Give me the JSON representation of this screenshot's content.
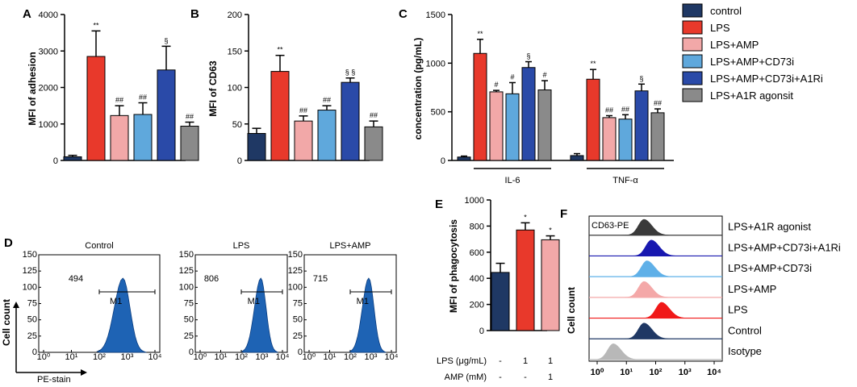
{
  "colors": {
    "control": "#1f3864",
    "LPS": "#e8392b",
    "LPS+AMP": "#f2a8a8",
    "LPS+AMP+CD73i": "#5fa8dc",
    "LPS+AMP+CD73i+A1Ri": "#2a4aa8",
    "LPS+A1R agonsit": "#8a8a8a",
    "flow_fill": "#1e63b4"
  },
  "panel_labels": {
    "A": "A",
    "B": "B",
    "C": "C",
    "D": "D",
    "E": "E",
    "F": "F"
  },
  "legend": [
    "control",
    "LPS",
    "LPS+AMP",
    "LPS+AMP+CD73i",
    "LPS+AMP+CD73i+A1Ri",
    "LPS+A1R agonsit"
  ],
  "chart_data": [
    {
      "id": "A",
      "type": "bar",
      "ylabel": "MFI of adhesion",
      "ylim": [
        0,
        4000
      ],
      "yticks": [
        "0",
        "1000",
        "2000",
        "3000",
        "4000"
      ],
      "categories": [
        "control",
        "LPS",
        "LPS+AMP",
        "LPS+AMP+CD73i",
        "LPS+AMP+CD73i+A1Ri",
        "LPS+A1R agonsit"
      ],
      "values": [
        100,
        2850,
        1230,
        1260,
        2480,
        940
      ],
      "errors": [
        40,
        700,
        270,
        320,
        650,
        110
      ],
      "annotations": [
        "",
        "**",
        "##",
        "##",
        "§",
        "##"
      ]
    },
    {
      "id": "B",
      "type": "bar",
      "ylabel": "MFI of CD63",
      "ylim": [
        0,
        200
      ],
      "yticks": [
        "0",
        "50",
        "100",
        "150",
        "200"
      ],
      "categories": [
        "control",
        "LPS",
        "LPS+AMP",
        "LPS+AMP+CD73i",
        "LPS+AMP+CD73i+A1Ri",
        "LPS+A1R agonsit"
      ],
      "values": [
        37,
        122,
        54,
        69,
        107,
        46
      ],
      "errors": [
        7,
        22,
        7,
        6,
        6,
        8
      ],
      "annotations": [
        "",
        "**",
        "##",
        "##",
        "§ §",
        "##"
      ]
    },
    {
      "id": "C",
      "type": "bar",
      "ylabel": "concentration (pg/mL)",
      "ylim": [
        0,
        1500
      ],
      "yticks": [
        "0",
        "500",
        "1000",
        "1500"
      ],
      "groups": [
        "IL-6",
        "TNF-α"
      ],
      "series": [
        {
          "name": "control",
          "values": [
            35,
            50
          ],
          "errors": [
            10,
            20
          ],
          "annotations": [
            "",
            ""
          ]
        },
        {
          "name": "LPS",
          "values": [
            1100,
            835
          ],
          "errors": [
            145,
            100
          ],
          "annotations": [
            "**",
            "**"
          ]
        },
        {
          "name": "LPS+AMP",
          "values": [
            705,
            440
          ],
          "errors": [
            15,
            20
          ],
          "annotations": [
            "#",
            "##"
          ]
        },
        {
          "name": "LPS+AMP+CD73i",
          "values": [
            685,
            425
          ],
          "errors": [
            115,
            45
          ],
          "annotations": [
            "#",
            "##"
          ]
        },
        {
          "name": "LPS+AMP+CD73i+A1Ri",
          "values": [
            955,
            715
          ],
          "errors": [
            60,
            70
          ],
          "annotations": [
            "§",
            "§"
          ]
        },
        {
          "name": "LPS+A1R agonsit",
          "values": [
            725,
            490
          ],
          "errors": [
            95,
            40
          ],
          "annotations": [
            "#",
            "##"
          ]
        }
      ]
    },
    {
      "id": "E",
      "type": "bar",
      "ylabel": "MFI of phagocytosis",
      "ylim": [
        0,
        1000
      ],
      "yticks": [
        "0",
        "200",
        "400",
        "600",
        "800",
        "1000"
      ],
      "categories": [
        "control",
        "LPS",
        "LPS+AMP"
      ],
      "values": [
        445,
        770,
        695
      ],
      "errors": [
        70,
        55,
        30
      ],
      "annotations": [
        "",
        "*",
        "*"
      ],
      "treatment_rows": [
        {
          "label": "LPS (μg/mL)",
          "values": [
            "-",
            "1",
            "1"
          ]
        },
        {
          "label": "AMP (mM)",
          "values": [
            "-",
            "-",
            "1"
          ]
        }
      ]
    },
    {
      "id": "D",
      "type": "histogram",
      "ylabel": "Cell count",
      "xlabel": "PE-stain",
      "yticks": [
        "0",
        "25",
        "50",
        "75",
        "100",
        "125",
        "150"
      ],
      "xticks": [
        "10⁰",
        "10¹",
        "10²",
        "10³",
        "10⁴"
      ],
      "gate": "M1",
      "panels": [
        {
          "title": "Control",
          "value": "494",
          "peak_log": 2.85
        },
        {
          "title": "LPS",
          "value": "806",
          "peak_log": 2.95
        },
        {
          "title": "LPS+AMP",
          "value": "715",
          "peak_log": 2.9
        }
      ]
    },
    {
      "id": "F",
      "type": "histogram",
      "ylabel": "Cell count",
      "header": "CD63-PE",
      "xticks": [
        "10⁰",
        "10¹",
        "10²",
        "10³",
        "10⁴"
      ],
      "rows": [
        {
          "label": "LPS+A1R agonist",
          "peak_log": 1.6,
          "color": "#3a3a3a"
        },
        {
          "label": "LPS+AMP+CD73i+A1Ri",
          "peak_log": 1.85,
          "color": "#1818b0"
        },
        {
          "label": "LPS+AMP+CD73i",
          "peak_log": 1.7,
          "color": "#5fb0e8"
        },
        {
          "label": "LPS+AMP",
          "peak_log": 1.6,
          "color": "#f4a8a8"
        },
        {
          "label": "LPS",
          "peak_log": 2.2,
          "color": "#f01818"
        },
        {
          "label": "Control",
          "peak_log": 1.6,
          "color": "#1f3864"
        },
        {
          "label": "Isotype",
          "peak_log": 0.55,
          "color": "#b8b8b8"
        }
      ]
    }
  ]
}
